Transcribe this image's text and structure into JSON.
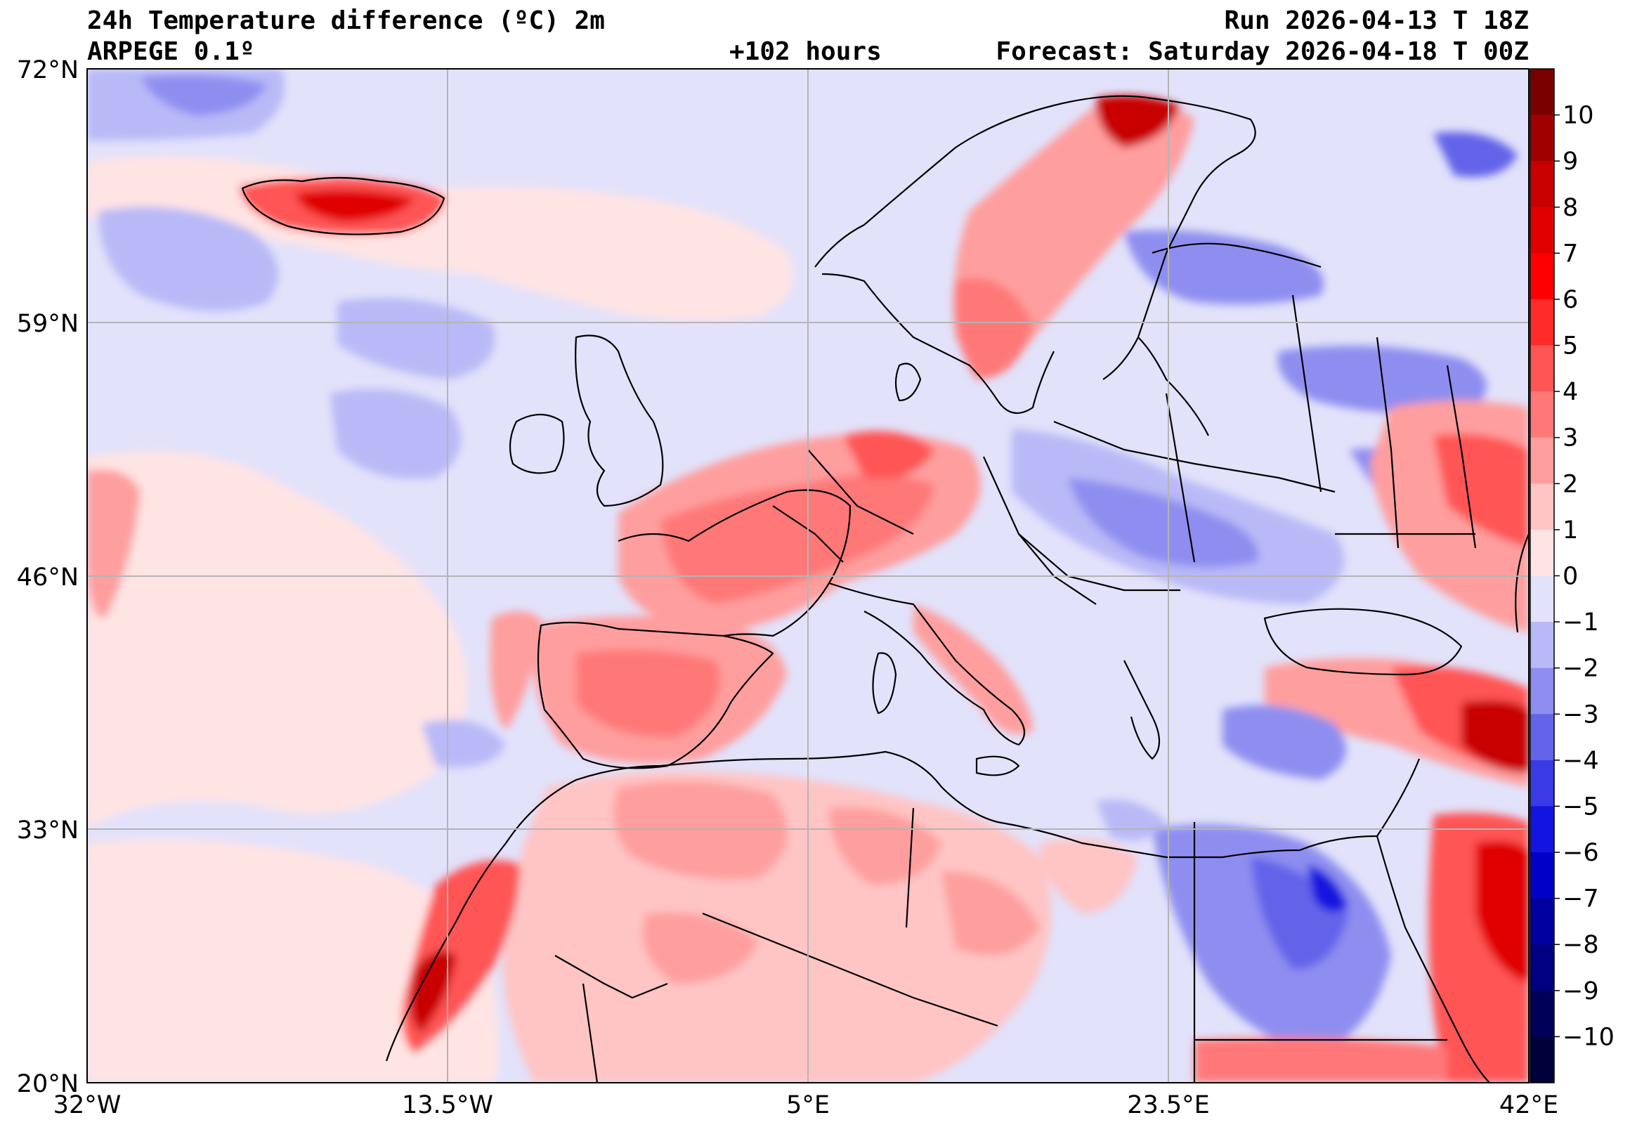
{
  "header": {
    "title": "24h Temperature difference (ºC) 2m",
    "run": "Run 2026-04-13 T 18Z",
    "model": "ARPEGE 0.1º",
    "lead": "+102 hours",
    "forecast": "Forecast: Saturday 2026-04-18 T 00Z"
  },
  "axes": {
    "lat_labels": [
      "72°N",
      "59°N",
      "46°N",
      "33°N",
      "20°N"
    ],
    "lon_labels": [
      "32°W",
      "13.5°W",
      "5°E",
      "23.5°E",
      "42°E"
    ]
  },
  "colorbar": {
    "labels": [
      "10",
      "9",
      "8",
      "7",
      "6",
      "5",
      "4",
      "3",
      "2",
      "1",
      "0",
      "−1",
      "−2",
      "−3",
      "−4",
      "−5",
      "−6",
      "−7",
      "−8",
      "−9",
      "−10"
    ],
    "colors_top_to_bottom": [
      "#7a0000",
      "#a00000",
      "#c80000",
      "#e00000",
      "#ff0000",
      "#ff2a2a",
      "#ff5555",
      "#ff7878",
      "#ff9e9e",
      "#ffc4c4",
      "#ffe4e4",
      "#e2e2fb",
      "#b9b9f7",
      "#8e8ef0",
      "#6464ea",
      "#3b3be6",
      "#1414e0",
      "#0000c8",
      "#0000a0",
      "#000080",
      "#000058",
      "#00003a"
    ]
  },
  "colors": {
    "light_pos": "#ffe4e4",
    "light_neg": "#e2e2fb",
    "border": "#000000",
    "grid": "#b4b4b4"
  }
}
